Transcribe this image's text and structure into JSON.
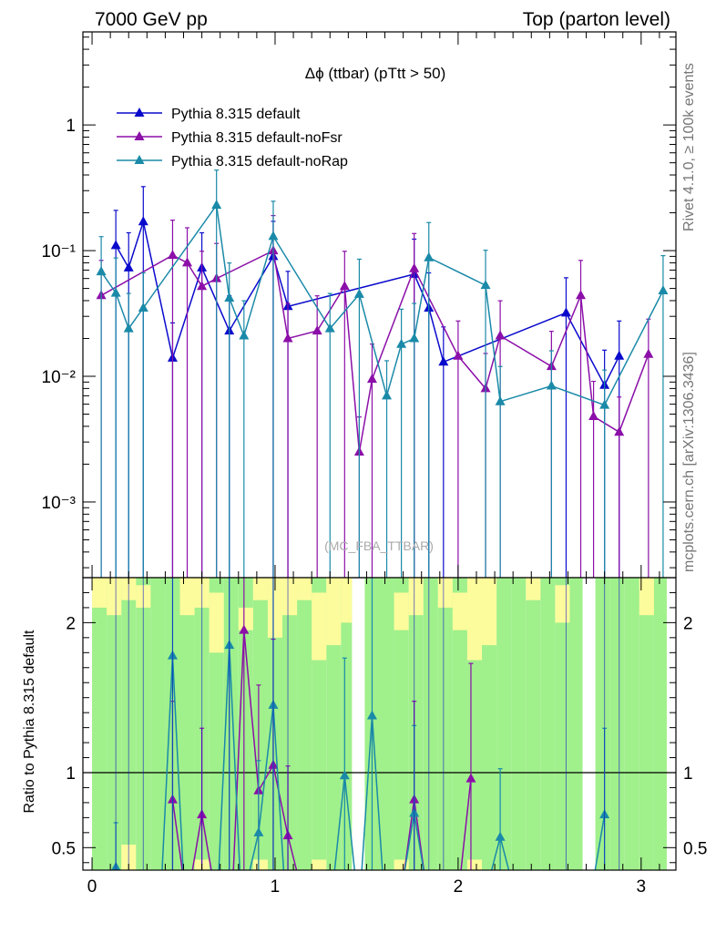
{
  "header": {
    "left": "7000 GeV pp",
    "right": "Top (parton level)"
  },
  "side": {
    "rivet": "Rivet 4.1.0, ≥ 100k events",
    "mcplots": "mcplots.cern.ch [arXiv:1306.3436]"
  },
  "colors": {
    "default": "#0a0acc",
    "noFsr": "#8b0fa8",
    "noRap": "#1a8aa8",
    "band_green": "#a0f08c",
    "band_yellow": "#fcfc9c"
  },
  "chart_data": [
    {
      "type": "line",
      "title": "Δϕ (ttbar) (pTtt > 50)",
      "watermark": "(MC_FBA_TTBAR)",
      "xlabel": "",
      "ylabel": "",
      "xlim": [
        -0.05,
        3.19
      ],
      "ylim": [
        0.00025,
        5.5
      ],
      "yscale": "log",
      "x_ticks": [
        "0",
        "1",
        "2",
        "3"
      ],
      "y_ticks": [
        {
          "v": 1,
          "label": "1"
        },
        {
          "v": 0.1,
          "label": "10⁻¹"
        },
        {
          "v": 0.01,
          "label": "10⁻²"
        },
        {
          "v": 0.001,
          "label": "10⁻³"
        }
      ],
      "legend_position": "top-left",
      "series": [
        {
          "name": "Pythia 8.315 default",
          "color": "#0a0acc",
          "points": [
            {
              "x": 0.13,
              "y": 0.11
            },
            {
              "x": 0.2,
              "y": 0.073
            },
            {
              "x": 0.28,
              "y": 0.17
            },
            {
              "x": 0.44,
              "y": 0.014
            },
            {
              "x": 0.6,
              "y": 0.073
            },
            {
              "x": 0.75,
              "y": 0.023
            },
            {
              "x": 0.99,
              "y": 0.09
            },
            {
              "x": 1.07,
              "y": 0.036
            },
            {
              "x": 1.76,
              "y": 0.065
            },
            {
              "x": 1.84,
              "y": 0.035
            },
            {
              "x": 1.92,
              "y": 0.013
            },
            {
              "x": 2.59,
              "y": 0.032
            },
            {
              "x": 2.8,
              "y": 0.0085
            },
            {
              "x": 2.88,
              "y": 0.0145
            }
          ]
        },
        {
          "name": "Pythia 8.315 default-noFsr",
          "color": "#8b0fa8",
          "points": [
            {
              "x": 0.05,
              "y": 0.044
            },
            {
              "x": 0.44,
              "y": 0.092
            },
            {
              "x": 0.52,
              "y": 0.08
            },
            {
              "x": 0.6,
              "y": 0.052
            },
            {
              "x": 0.68,
              "y": 0.06
            },
            {
              "x": 0.99,
              "y": 0.1
            },
            {
              "x": 1.07,
              "y": 0.02
            },
            {
              "x": 1.23,
              "y": 0.023
            },
            {
              "x": 1.38,
              "y": 0.052
            },
            {
              "x": 1.46,
              "y": 0.0025
            },
            {
              "x": 1.53,
              "y": 0.0095
            },
            {
              "x": 1.76,
              "y": 0.072
            },
            {
              "x": 2.0,
              "y": 0.0145
            },
            {
              "x": 2.15,
              "y": 0.008
            },
            {
              "x": 2.23,
              "y": 0.021
            },
            {
              "x": 2.51,
              "y": 0.012
            },
            {
              "x": 2.67,
              "y": 0.044
            },
            {
              "x": 2.74,
              "y": 0.0048
            },
            {
              "x": 2.88,
              "y": 0.0036
            },
            {
              "x": 3.04,
              "y": 0.015
            }
          ]
        },
        {
          "name": "Pythia 8.315 default-noRap",
          "color": "#1a8aa8",
          "points": [
            {
              "x": 0.05,
              "y": 0.068
            },
            {
              "x": 0.13,
              "y": 0.046
            },
            {
              "x": 0.2,
              "y": 0.024
            },
            {
              "x": 0.28,
              "y": 0.035
            },
            {
              "x": 0.68,
              "y": 0.23
            },
            {
              "x": 0.75,
              "y": 0.042
            },
            {
              "x": 0.83,
              "y": 0.021
            },
            {
              "x": 0.99,
              "y": 0.13
            },
            {
              "x": 1.3,
              "y": 0.024
            },
            {
              "x": 1.46,
              "y": 0.045
            },
            {
              "x": 1.61,
              "y": 0.007
            },
            {
              "x": 1.69,
              "y": 0.018
            },
            {
              "x": 1.76,
              "y": 0.02
            },
            {
              "x": 1.84,
              "y": 0.088
            },
            {
              "x": 2.15,
              "y": 0.053
            },
            {
              "x": 2.23,
              "y": 0.0063
            },
            {
              "x": 2.51,
              "y": 0.0084
            },
            {
              "x": 2.8,
              "y": 0.0059
            },
            {
              "x": 3.12,
              "y": 0.048
            }
          ]
        }
      ]
    },
    {
      "type": "line",
      "title": "",
      "xlabel": "",
      "ylabel": "Ratio to Pythia 8.315 default",
      "xlim": [
        -0.05,
        3.19
      ],
      "ylim": [
        0.35,
        2.3
      ],
      "x_ticks": [
        "0",
        "1",
        "2",
        "3"
      ],
      "y_ticks": [
        {
          "v": 0.5,
          "label": "0.5"
        },
        {
          "v": 1,
          "label": "1"
        },
        {
          "v": 2,
          "label": "2"
        }
      ],
      "reference_line": 1,
      "band_green": [
        {
          "x0": 0.0,
          "x1": 0.08,
          "lo": 0.35,
          "hi": 2.3
        },
        {
          "x0": 0.08,
          "x1": 0.16,
          "lo": 0.35,
          "hi": 2.3
        },
        {
          "x0": 0.16,
          "x1": 0.24,
          "lo": 0.35,
          "hi": 2.3
        },
        {
          "x0": 0.24,
          "x1": 0.32,
          "lo": 0.35,
          "hi": 2.3
        },
        {
          "x0": 0.32,
          "x1": 0.4,
          "lo": 0.35,
          "hi": 2.3
        },
        {
          "x0": 0.4,
          "x1": 0.48,
          "lo": 0.35,
          "hi": 2.3
        },
        {
          "x0": 0.48,
          "x1": 0.56,
          "lo": 0.35,
          "hi": 2.3
        },
        {
          "x0": 0.56,
          "x1": 0.64,
          "lo": 0.35,
          "hi": 2.3
        },
        {
          "x0": 0.64,
          "x1": 0.72,
          "lo": 0.35,
          "hi": 2.3
        },
        {
          "x0": 0.72,
          "x1": 0.8,
          "lo": 0.35,
          "hi": 2.3
        },
        {
          "x0": 0.8,
          "x1": 0.88,
          "lo": 0.35,
          "hi": 2.3
        },
        {
          "x0": 0.88,
          "x1": 0.96,
          "lo": 0.35,
          "hi": 2.3
        },
        {
          "x0": 0.96,
          "x1": 1.04,
          "lo": 0.35,
          "hi": 2.3
        },
        {
          "x0": 1.04,
          "x1": 1.12,
          "lo": 0.35,
          "hi": 2.3
        },
        {
          "x0": 1.12,
          "x1": 1.2,
          "lo": 0.35,
          "hi": 2.3
        },
        {
          "x0": 1.2,
          "x1": 1.28,
          "lo": 0.35,
          "hi": 2.3
        },
        {
          "x0": 1.28,
          "x1": 1.36,
          "lo": 0.35,
          "hi": 2.3
        },
        {
          "x0": 1.36,
          "x1": 1.42,
          "lo": 0.35,
          "hi": 2.3
        },
        {
          "x0": 1.49,
          "x1": 1.57,
          "lo": 0.35,
          "hi": 2.3
        },
        {
          "x0": 1.57,
          "x1": 1.65,
          "lo": 0.35,
          "hi": 2.3
        },
        {
          "x0": 1.65,
          "x1": 1.73,
          "lo": 0.35,
          "hi": 2.3
        },
        {
          "x0": 1.73,
          "x1": 1.81,
          "lo": 0.35,
          "hi": 2.3
        },
        {
          "x0": 1.81,
          "x1": 1.89,
          "lo": 0.35,
          "hi": 2.3
        },
        {
          "x0": 1.89,
          "x1": 1.97,
          "lo": 0.35,
          "hi": 2.3
        },
        {
          "x0": 1.97,
          "x1": 2.05,
          "lo": 0.35,
          "hi": 2.3
        },
        {
          "x0": 2.05,
          "x1": 2.13,
          "lo": 0.35,
          "hi": 2.3
        },
        {
          "x0": 2.13,
          "x1": 2.21,
          "lo": 0.35,
          "hi": 2.3
        },
        {
          "x0": 2.21,
          "x1": 2.29,
          "lo": 0.35,
          "hi": 2.3
        },
        {
          "x0": 2.29,
          "x1": 2.37,
          "lo": 0.35,
          "hi": 2.3
        },
        {
          "x0": 2.37,
          "x1": 2.45,
          "lo": 0.35,
          "hi": 2.3
        },
        {
          "x0": 2.45,
          "x1": 2.53,
          "lo": 0.35,
          "hi": 2.3
        },
        {
          "x0": 2.53,
          "x1": 2.61,
          "lo": 0.35,
          "hi": 2.3
        },
        {
          "x0": 2.61,
          "x1": 2.68,
          "lo": 0.35,
          "hi": 2.3
        },
        {
          "x0": 2.75,
          "x1": 2.83,
          "lo": 0.35,
          "hi": 2.3
        },
        {
          "x0": 2.83,
          "x1": 2.91,
          "lo": 0.35,
          "hi": 2.3
        },
        {
          "x0": 2.91,
          "x1": 2.99,
          "lo": 0.35,
          "hi": 2.3
        },
        {
          "x0": 2.99,
          "x1": 3.07,
          "lo": 0.35,
          "hi": 2.3
        },
        {
          "x0": 3.07,
          "x1": 3.14,
          "lo": 0.35,
          "hi": 2.3
        }
      ],
      "band_yellow": [
        {
          "x0": 0.0,
          "x1": 0.08,
          "lo": 2.1,
          "hi": 2.3
        },
        {
          "x0": 0.08,
          "x1": 0.16,
          "lo": 2.05,
          "hi": 2.3
        },
        {
          "x0": 0.16,
          "x1": 0.24,
          "lo": 2.15,
          "hi": 2.3
        },
        {
          "x0": 0.24,
          "x1": 0.32,
          "lo": 2.1,
          "hi": 2.25
        },
        {
          "x0": 0.48,
          "x1": 0.56,
          "lo": 2.05,
          "hi": 2.3
        },
        {
          "x0": 0.56,
          "x1": 0.64,
          "lo": 2.1,
          "hi": 2.3
        },
        {
          "x0": 0.64,
          "x1": 0.72,
          "lo": 1.8,
          "hi": 2.2
        },
        {
          "x0": 0.8,
          "x1": 0.88,
          "lo": 1.95,
          "hi": 2.1
        },
        {
          "x0": 0.88,
          "x1": 0.96,
          "lo": 2.15,
          "hi": 2.3
        },
        {
          "x0": 0.96,
          "x1": 1.04,
          "lo": 1.9,
          "hi": 2.3
        },
        {
          "x0": 1.04,
          "x1": 1.12,
          "lo": 2.05,
          "hi": 2.3
        },
        {
          "x0": 1.12,
          "x1": 1.2,
          "lo": 2.15,
          "hi": 2.3
        },
        {
          "x0": 1.2,
          "x1": 1.28,
          "lo": 1.75,
          "hi": 2.2
        },
        {
          "x0": 1.28,
          "x1": 1.36,
          "lo": 1.85,
          "hi": 2.3
        },
        {
          "x0": 1.36,
          "x1": 1.42,
          "lo": 2.0,
          "hi": 2.3
        },
        {
          "x0": 1.65,
          "x1": 1.73,
          "lo": 1.95,
          "hi": 2.2
        },
        {
          "x0": 1.73,
          "x1": 1.81,
          "lo": 2.05,
          "hi": 2.3
        },
        {
          "x0": 1.89,
          "x1": 1.97,
          "lo": 2.1,
          "hi": 2.3
        },
        {
          "x0": 1.97,
          "x1": 2.05,
          "lo": 1.95,
          "hi": 2.2
        },
        {
          "x0": 2.05,
          "x1": 2.13,
          "lo": 1.75,
          "hi": 2.3
        },
        {
          "x0": 2.13,
          "x1": 2.21,
          "lo": 1.85,
          "hi": 2.3
        },
        {
          "x0": 2.37,
          "x1": 2.45,
          "lo": 2.15,
          "hi": 2.3
        },
        {
          "x0": 2.53,
          "x1": 2.61,
          "lo": 2.0,
          "hi": 2.25
        },
        {
          "x0": 2.99,
          "x1": 3.07,
          "lo": 2.05,
          "hi": 2.3
        },
        {
          "x0": 0.16,
          "x1": 0.24,
          "lo": 0.35,
          "hi": 0.52
        },
        {
          "x0": 0.56,
          "x1": 0.64,
          "lo": 0.35,
          "hi": 0.42
        },
        {
          "x0": 0.88,
          "x1": 0.96,
          "lo": 0.35,
          "hi": 0.42
        },
        {
          "x0": 1.2,
          "x1": 1.28,
          "lo": 0.35,
          "hi": 0.42
        },
        {
          "x0": 1.65,
          "x1": 1.73,
          "lo": 0.35,
          "hi": 0.42
        },
        {
          "x0": 2.05,
          "x1": 2.13,
          "lo": 0.35,
          "hi": 0.42
        }
      ],
      "series": [
        {
          "name": "Pythia 8.315 default-noFsr",
          "color": "#8b0fa8",
          "points": [
            {
              "x": 0.44,
              "y": 0.82
            },
            {
              "x": 0.6,
              "y": 0.72
            },
            {
              "x": 0.83,
              "y": 1.95
            },
            {
              "x": 0.91,
              "y": 0.88
            },
            {
              "x": 0.99,
              "y": 1.05
            },
            {
              "x": 1.07,
              "y": 0.58
            },
            {
              "x": 1.76,
              "y": 0.82
            },
            {
              "x": 2.07,
              "y": 0.96
            }
          ]
        },
        {
          "name": "Pythia 8.315 default-noRap",
          "color": "#1a8aa8",
          "points": [
            {
              "x": 0.13,
              "y": 0.37
            },
            {
              "x": 0.44,
              "y": 1.78
            },
            {
              "x": 0.75,
              "y": 1.85
            },
            {
              "x": 0.91,
              "y": 0.6
            },
            {
              "x": 0.99,
              "y": 1.45
            },
            {
              "x": 1.38,
              "y": 0.98
            },
            {
              "x": 1.53,
              "y": 1.38
            },
            {
              "x": 1.76,
              "y": 0.73
            },
            {
              "x": 2.23,
              "y": 0.57
            },
            {
              "x": 2.8,
              "y": 0.72
            }
          ]
        }
      ]
    }
  ],
  "legend": [
    {
      "label": "Pythia 8.315 default",
      "color": "#0a0acc"
    },
    {
      "label": "Pythia 8.315 default-noFsr",
      "color": "#8b0fa8"
    },
    {
      "label": "Pythia 8.315 default-noRap",
      "color": "#1a8aa8"
    }
  ]
}
